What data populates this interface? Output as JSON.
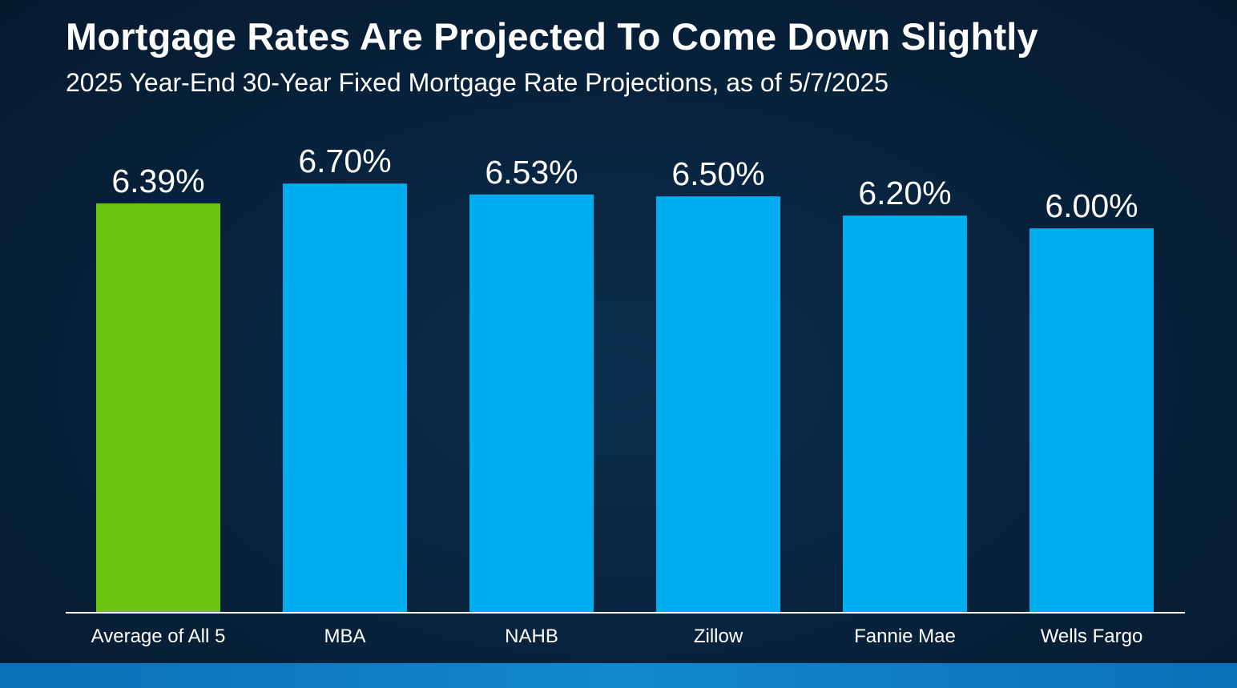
{
  "header": {
    "title": "Mortgage Rates Are Projected To Come Down Slightly",
    "subtitle": "2025 Year-End 30-Year Fixed Mortgage Rate Projections, as of 5/7/2025"
  },
  "colors": {
    "highlight_bar": "#6cc510",
    "bar": "#00aeef",
    "axis": "#ffffff",
    "text": "#ffffff"
  },
  "chart_data": {
    "type": "bar",
    "categories": [
      "Average of All 5",
      "MBA",
      "NAHB",
      "Zillow",
      "Fannie Mae",
      "Wells Fargo"
    ],
    "values": [
      6.39,
      6.7,
      6.53,
      6.5,
      6.2,
      6.0
    ],
    "data_labels": [
      "6.39%",
      "6.70%",
      "6.53%",
      "6.50%",
      "6.20%",
      "6.00%"
    ],
    "highlight_index": 0,
    "title": "Mortgage Rates Are Projected To Come Down Slightly",
    "subtitle": "2025 Year-End 30-Year Fixed Mortgage Rate Projections, as of 5/7/2025",
    "xlabel": "",
    "ylabel": "",
    "ylim": [
      0,
      6.94
    ],
    "grid": false,
    "legend": "none"
  }
}
